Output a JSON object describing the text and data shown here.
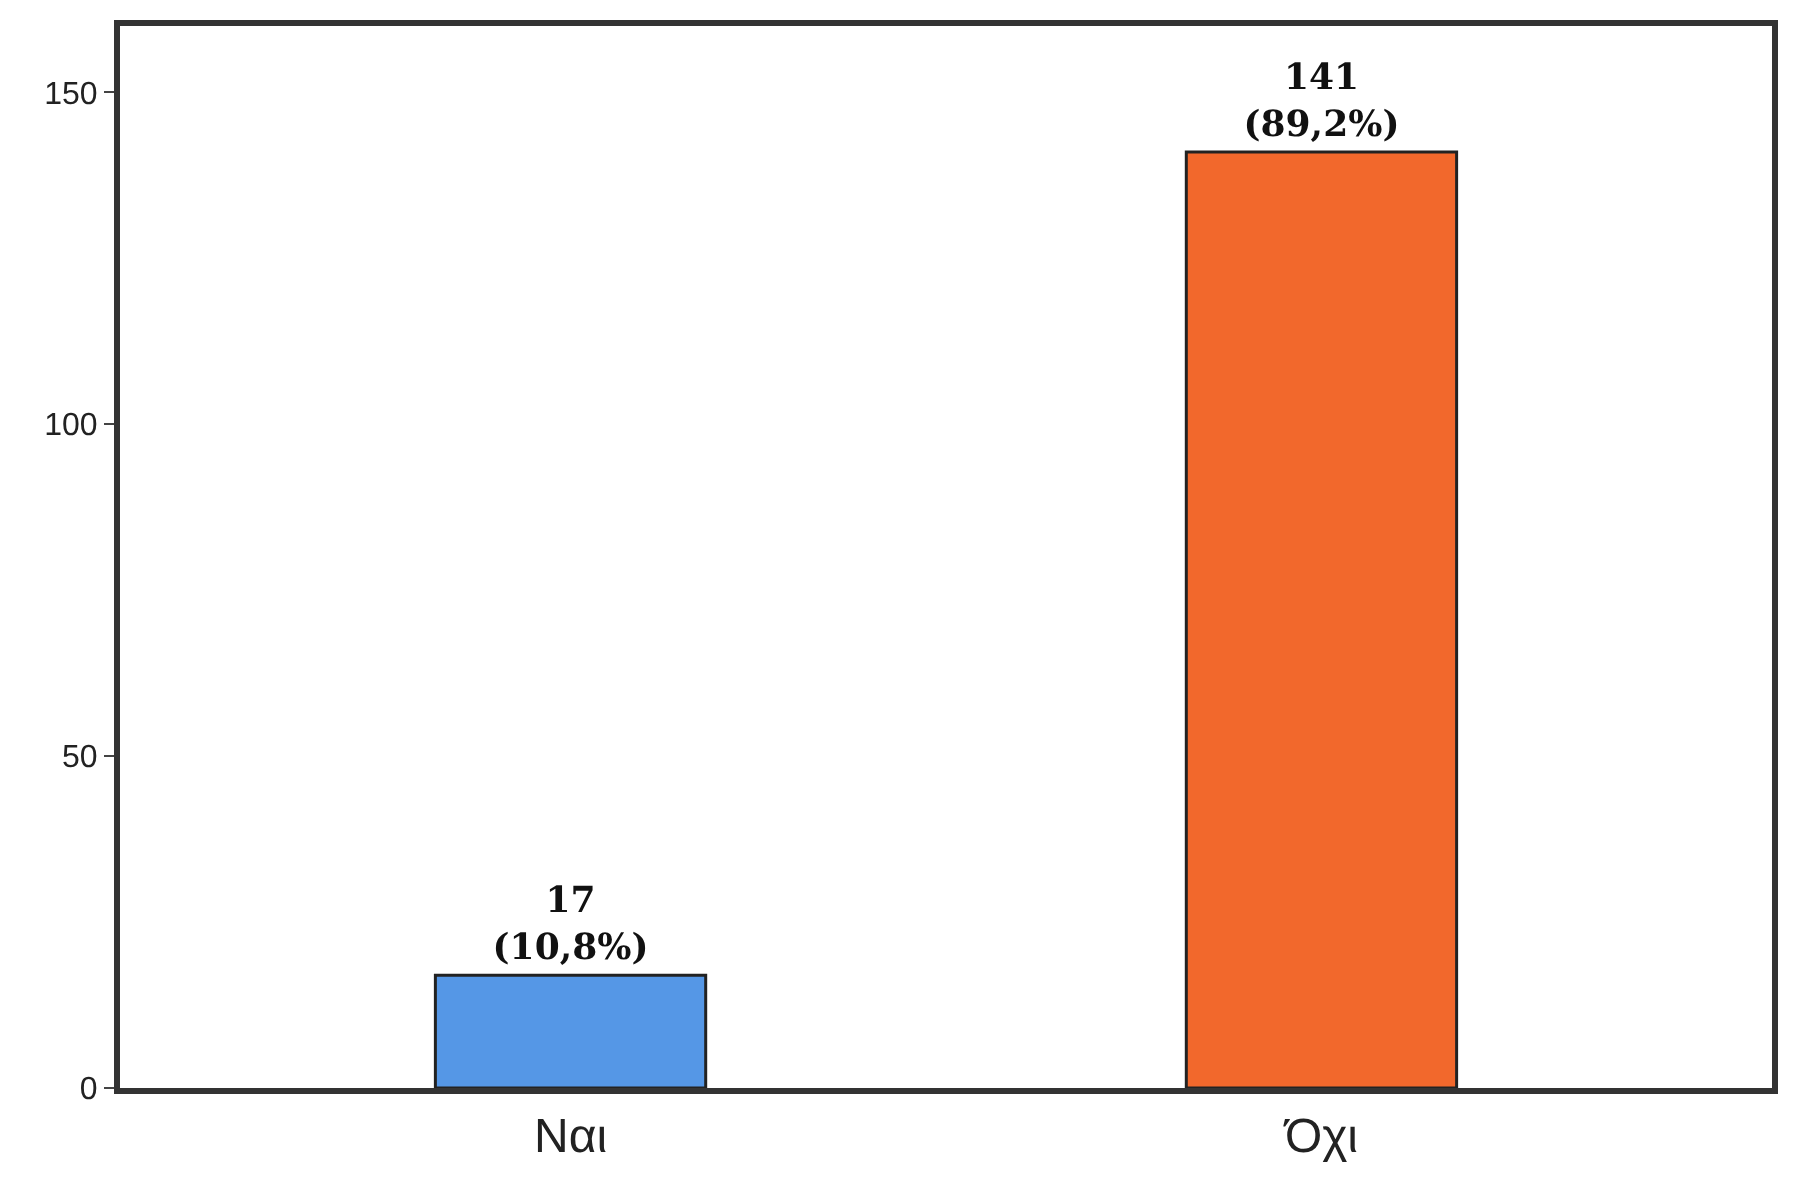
{
  "chart_data": {
    "type": "bar",
    "categories": [
      "Ναι",
      "Όχι"
    ],
    "values": [
      17,
      141
    ],
    "colors": [
      "#5597e6",
      "#f2682c"
    ],
    "value_labels": [
      "17\n(10,8%)",
      "141\n(89,2%)"
    ],
    "ylim": [
      0,
      160
    ],
    "yticks": [
      0,
      50,
      100,
      150
    ]
  }
}
